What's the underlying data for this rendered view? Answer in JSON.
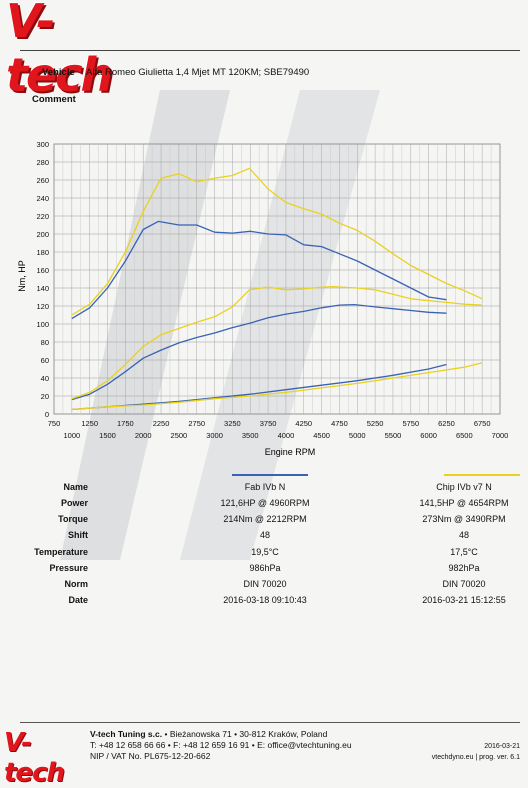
{
  "brand": {
    "logo_text": "V-tech",
    "accent": "#e1161c"
  },
  "vehicle": {
    "label": "Vehicle",
    "value": "Alfa Romeo Giulietta 1,4 Mjet MT 120KM; SBE79490"
  },
  "comment": {
    "label": "Comment",
    "value": ""
  },
  "chart_data": {
    "type": "line",
    "title": "",
    "xlabel": "Engine RPM",
    "ylabel": "Nm, HP",
    "xlim": [
      750,
      7000
    ],
    "ylim": [
      0,
      300
    ],
    "x_ticks_lower": [
      1000,
      1500,
      2000,
      2500,
      3000,
      3500,
      4000,
      4500,
      5000,
      5500,
      6000,
      6500,
      7000
    ],
    "x_ticks_upper": [
      750,
      1250,
      1750,
      2250,
      2750,
      3250,
      3750,
      4250,
      4750,
      5250,
      5750,
      6250,
      6750
    ],
    "y_ticks": [
      0,
      20,
      40,
      60,
      80,
      100,
      120,
      140,
      160,
      180,
      200,
      220,
      240,
      260,
      280,
      300
    ],
    "grid": true,
    "series": [
      {
        "name": "Fab IVb N",
        "kind": "torque",
        "color": "#3a62b4",
        "points": [
          [
            1000,
            106
          ],
          [
            1250,
            118
          ],
          [
            1500,
            140
          ],
          [
            1750,
            170
          ],
          [
            2000,
            205
          ],
          [
            2212,
            214
          ],
          [
            2500,
            210
          ],
          [
            2750,
            210
          ],
          [
            3000,
            202
          ],
          [
            3250,
            201
          ],
          [
            3500,
            203
          ],
          [
            3750,
            200
          ],
          [
            4000,
            199
          ],
          [
            4250,
            188
          ],
          [
            4500,
            186
          ],
          [
            4750,
            178
          ],
          [
            5000,
            170
          ],
          [
            5250,
            160
          ],
          [
            5500,
            150
          ],
          [
            5750,
            140
          ],
          [
            6000,
            130
          ],
          [
            6250,
            127
          ]
        ]
      },
      {
        "name": "Fab IVb N",
        "kind": "power",
        "color": "#3a62b4",
        "points": [
          [
            1000,
            16
          ],
          [
            1250,
            22
          ],
          [
            1500,
            33
          ],
          [
            1750,
            47
          ],
          [
            2000,
            62
          ],
          [
            2250,
            71
          ],
          [
            2500,
            79
          ],
          [
            2750,
            85
          ],
          [
            3000,
            90
          ],
          [
            3250,
            96
          ],
          [
            3500,
            101
          ],
          [
            3750,
            107
          ],
          [
            4000,
            111
          ],
          [
            4250,
            114
          ],
          [
            4500,
            118
          ],
          [
            4750,
            121
          ],
          [
            4960,
            121.6
          ],
          [
            5250,
            119
          ],
          [
            5500,
            117
          ],
          [
            5750,
            115
          ],
          [
            6000,
            113
          ],
          [
            6250,
            112
          ]
        ]
      },
      {
        "name": "Fab IVb N",
        "kind": "loss",
        "color": "#3a62b4",
        "points": [
          [
            1000,
            5
          ],
          [
            1500,
            8
          ],
          [
            2000,
            11
          ],
          [
            2500,
            14
          ],
          [
            3000,
            18
          ],
          [
            3500,
            22
          ],
          [
            4000,
            27
          ],
          [
            4500,
            32
          ],
          [
            5000,
            37
          ],
          [
            5500,
            43
          ],
          [
            6000,
            50
          ],
          [
            6250,
            55
          ]
        ]
      },
      {
        "name": "Chip IVb v7 N",
        "kind": "torque",
        "color": "#e9d21e",
        "points": [
          [
            1000,
            110
          ],
          [
            1250,
            122
          ],
          [
            1500,
            145
          ],
          [
            1750,
            180
          ],
          [
            2000,
            225
          ],
          [
            2250,
            262
          ],
          [
            2500,
            267
          ],
          [
            2750,
            258
          ],
          [
            3000,
            262
          ],
          [
            3250,
            265
          ],
          [
            3490,
            273
          ],
          [
            3750,
            250
          ],
          [
            4000,
            235
          ],
          [
            4250,
            228
          ],
          [
            4500,
            222
          ],
          [
            4750,
            212
          ],
          [
            5000,
            204
          ],
          [
            5250,
            192
          ],
          [
            5500,
            178
          ],
          [
            5750,
            165
          ],
          [
            6000,
            155
          ],
          [
            6250,
            145
          ],
          [
            6500,
            137
          ],
          [
            6750,
            128
          ]
        ]
      },
      {
        "name": "Chip IVb v7 N",
        "kind": "power",
        "color": "#e9d21e",
        "points": [
          [
            1000,
            17
          ],
          [
            1250,
            24
          ],
          [
            1500,
            37
          ],
          [
            1750,
            55
          ],
          [
            2000,
            75
          ],
          [
            2250,
            88
          ],
          [
            2500,
            95
          ],
          [
            2750,
            102
          ],
          [
            3000,
            108
          ],
          [
            3250,
            119
          ],
          [
            3490,
            138
          ],
          [
            3750,
            141
          ],
          [
            4000,
            138
          ],
          [
            4250,
            139
          ],
          [
            4500,
            141
          ],
          [
            4654,
            141.5
          ],
          [
            5000,
            140
          ],
          [
            5250,
            138
          ],
          [
            5500,
            133
          ],
          [
            5750,
            128
          ],
          [
            6000,
            126
          ],
          [
            6250,
            124
          ],
          [
            6500,
            122
          ],
          [
            6750,
            121
          ]
        ]
      },
      {
        "name": "Chip IVb v7 N",
        "kind": "loss",
        "color": "#e9d21e",
        "points": [
          [
            1000,
            5
          ],
          [
            1500,
            8
          ],
          [
            2000,
            10
          ],
          [
            2500,
            13
          ],
          [
            3000,
            17
          ],
          [
            3500,
            20
          ],
          [
            4000,
            24
          ],
          [
            4500,
            29
          ],
          [
            5000,
            34
          ],
          [
            5500,
            40
          ],
          [
            6000,
            46
          ],
          [
            6500,
            52
          ],
          [
            6750,
            57
          ]
        ]
      }
    ]
  },
  "table": {
    "columns": [
      "Fab IVb N",
      "Chip IVb v7 N"
    ],
    "rows": [
      {
        "label": "Name",
        "values": [
          "Fab IVb N",
          "Chip IVb v7 N"
        ]
      },
      {
        "label": "Power",
        "values": [
          "121,6HP @  4960RPM",
          "141,5HP @  4654RPM"
        ]
      },
      {
        "label": "Torque",
        "values": [
          "214Nm @ 2212RPM",
          "273Nm @ 3490RPM"
        ]
      },
      {
        "label": "Shift",
        "values": [
          "48",
          "48"
        ]
      },
      {
        "label": "Temperature",
        "values": [
          "19,5°C",
          "17,5°C"
        ]
      },
      {
        "label": "Pressure",
        "values": [
          "986hPa",
          "982hPa"
        ]
      },
      {
        "label": "Norm",
        "values": [
          "DIN 70020",
          "DIN 70020"
        ]
      },
      {
        "label": "Date",
        "values": [
          "2016-03-18 09:10:43",
          "2016-03-21 15:12:55"
        ]
      }
    ]
  },
  "footer": {
    "company": "V-tech Tuning s.c.",
    "address": "• Bieżanowska 71 • 30-812 Kraków, Poland",
    "phone_line": "T: +48 12 658 66 66 • F: +48 12 659 16 91 • E: office@vtechtuning.eu",
    "nip_line": "NIP / VAT No. PL675-12-20-662",
    "print_date": "2016-03-21",
    "site_version": "vtechdyno.eu | prog. ver. 6.1"
  }
}
